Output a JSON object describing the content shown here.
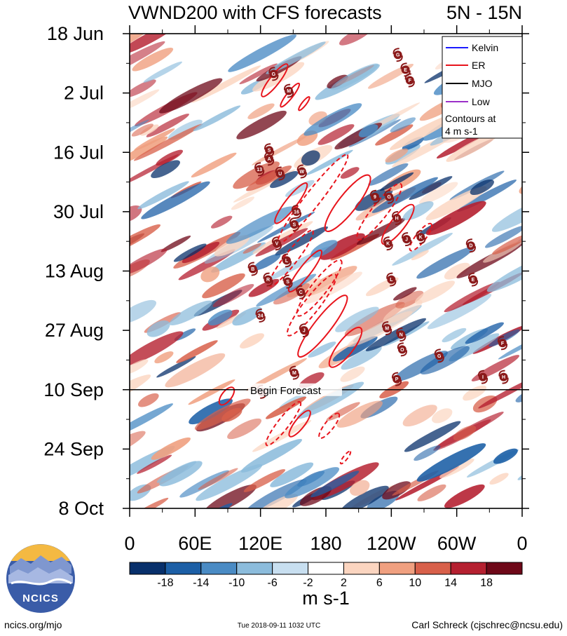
{
  "title": "VWND200 with CFS forecasts",
  "region": "5N - 15N",
  "colors": {
    "kelvin": "#1a1aff",
    "er": "#e8141c",
    "mjo": "#000000",
    "low": "#9b30c8",
    "storm": "#8b1a1a",
    "logo_bg": "#3a5ca8"
  },
  "legend": {
    "items": [
      {
        "label": "Kelvin",
        "color": "#1a1aff"
      },
      {
        "label": "ER",
        "color": "#e8141c"
      },
      {
        "label": "MJO",
        "color": "#000000"
      },
      {
        "label": "Low",
        "color": "#9b30c8"
      }
    ],
    "note_line1": "Contours at",
    "note_line2": "4 m s-1"
  },
  "forecast_label": "Begin Forecast",
  "colorbar": {
    "labels": [
      "-18",
      "-14",
      "-10",
      "-6",
      "-2",
      "2",
      "6",
      "10",
      "14",
      "18"
    ],
    "colors": [
      "#08306b",
      "#1c5fa6",
      "#4a8bc4",
      "#8cbcdc",
      "#c8dff0",
      "#ffffff",
      "#fbd5c0",
      "#f0a080",
      "#d8604a",
      "#b52030",
      "#6e0818"
    ],
    "units": "m s-1"
  },
  "logo_text": "NCICS",
  "footer": {
    "left": "ncics.org/mjo",
    "center": "Tue 2018-09-11 1032 UTC",
    "right": "Carl Schreck (cjschrec@ncsu.edu)"
  },
  "chart_data": {
    "type": "heatmap",
    "description_axes": "Hovmoller: longitude (x) vs time (y)",
    "x_ticks": [
      {
        "lon": 0,
        "label": "0"
      },
      {
        "lon": 60,
        "label": "60E"
      },
      {
        "lon": 120,
        "label": "120E"
      },
      {
        "lon": 180,
        "label": "180"
      },
      {
        "lon": 240,
        "label": "120W"
      },
      {
        "lon": 300,
        "label": "60W"
      },
      {
        "lon": 360,
        "label": "0"
      }
    ],
    "y_ticks": [
      {
        "day": 0,
        "label": "18 Jun"
      },
      {
        "day": 14,
        "label": "2 Jul"
      },
      {
        "day": 28,
        "label": "16 Jul"
      },
      {
        "day": 42,
        "label": "30 Jul"
      },
      {
        "day": 56,
        "label": "13 Aug"
      },
      {
        "day": 70,
        "label": "27 Aug"
      },
      {
        "day": 84,
        "label": "10 Sep"
      },
      {
        "day": 98,
        "label": "24 Sep"
      },
      {
        "day": 112,
        "label": "8 Oct"
      }
    ],
    "xlim": [
      0,
      360
    ],
    "ylim_days": [
      0,
      112
    ],
    "forecast_start_day": 84,
    "er_contours": [
      {
        "lon": 133,
        "day": 11.0,
        "len": 58,
        "w": 14,
        "dashed": false
      },
      {
        "lon": 147,
        "day": 14.5,
        "len": 42,
        "w": 9,
        "dashed": false
      },
      {
        "lon": 160,
        "day": 16.5,
        "len": 24,
        "w": 6,
        "dashed": false
      },
      {
        "lon": 148,
        "day": 40.0,
        "len": 72,
        "w": 16,
        "dashed": false
      },
      {
        "lon": 168,
        "day": 39.0,
        "len": 160,
        "w": 22,
        "dashed": true
      },
      {
        "lon": 200,
        "day": 40.0,
        "len": 100,
        "w": 26,
        "dashed": false
      },
      {
        "lon": 229,
        "day": 42.0,
        "len": 100,
        "w": 22,
        "dashed": true
      },
      {
        "lon": 246,
        "day": 45.0,
        "len": 70,
        "w": 20,
        "dashed": false
      },
      {
        "lon": 267,
        "day": 48.0,
        "len": 48,
        "w": 14,
        "dashed": true
      },
      {
        "lon": 148,
        "day": 53.0,
        "len": 100,
        "w": 18,
        "dashed": true
      },
      {
        "lon": 161,
        "day": 56.0,
        "len": 74,
        "w": 16,
        "dashed": false
      },
      {
        "lon": 174,
        "day": 60.0,
        "len": 100,
        "w": 22,
        "dashed": true
      },
      {
        "lon": 167,
        "day": 64.0,
        "len": 110,
        "w": 22,
        "dashed": true
      },
      {
        "lon": 177,
        "day": 69.0,
        "len": 110,
        "w": 24,
        "dashed": false
      },
      {
        "lon": 198,
        "day": 74.0,
        "len": 70,
        "w": 22,
        "dashed": false
      },
      {
        "lon": 89,
        "day": 85.5,
        "len": 30,
        "w": 14,
        "dashed": false
      },
      {
        "lon": 141,
        "day": 92.0,
        "len": 78,
        "w": 16,
        "dashed": true
      },
      {
        "lon": 156,
        "day": 92.0,
        "len": 46,
        "w": 14,
        "dashed": false
      },
      {
        "lon": 183,
        "day": 92.5,
        "len": 44,
        "w": 13,
        "dashed": true
      },
      {
        "lon": 198,
        "day": 100.0,
        "len": 22,
        "w": 6,
        "dashed": true
      }
    ],
    "storms": [
      {
        "label": "G",
        "lon": 132,
        "day": 9.5
      },
      {
        "label": "M",
        "lon": 146,
        "day": 13.5
      },
      {
        "label": "S",
        "lon": 128,
        "day": 27.5
      },
      {
        "label": "A",
        "lon": 128,
        "day": 29.5
      },
      {
        "label": "13",
        "lon": 119,
        "day": 32.0
      },
      {
        "label": "U",
        "lon": 138,
        "day": 33.0
      },
      {
        "label": "W",
        "lon": 158,
        "day": 32.5
      },
      {
        "label": "9",
        "lon": 225,
        "day": 38.5
      },
      {
        "label": "G",
        "lon": 238,
        "day": 38.5
      },
      {
        "label": "16",
        "lon": 153,
        "day": 42.0
      },
      {
        "label": "S",
        "lon": 151,
        "day": 45.0
      },
      {
        "label": "H",
        "lon": 245,
        "day": 43.5
      },
      {
        "label": "J",
        "lon": 254,
        "day": 48.5
      },
      {
        "label": "K",
        "lon": 267,
        "day": 48.0
      },
      {
        "label": "K",
        "lon": 237,
        "day": 49.5
      },
      {
        "label": "V",
        "lon": 135,
        "day": 49.5
      },
      {
        "label": "D",
        "lon": 313,
        "day": 50.0
      },
      {
        "label": "L",
        "lon": 144,
        "day": 53.5
      },
      {
        "label": "B",
        "lon": 113,
        "day": 55.5
      },
      {
        "label": "R",
        "lon": 127,
        "day": 58.0
      },
      {
        "label": "S",
        "lon": 145,
        "day": 58.5
      },
      {
        "label": "L",
        "lon": 240,
        "day": 58.0
      },
      {
        "label": "E",
        "lon": 315,
        "day": 58.0
      },
      {
        "label": "C",
        "lon": 157,
        "day": 61.0
      },
      {
        "label": "24",
        "lon": 120,
        "day": 66.5
      },
      {
        "label": "M",
        "lon": 236,
        "day": 69.5
      },
      {
        "label": "J",
        "lon": 160,
        "day": 70.0
      },
      {
        "label": "N",
        "lon": 249,
        "day": 71.0
      },
      {
        "label": "F",
        "lon": 342,
        "day": 73.0
      },
      {
        "label": "O",
        "lon": 250,
        "day": 74.5
      },
      {
        "label": "G",
        "lon": 284,
        "day": 76.0
      },
      {
        "label": "M",
        "lon": 151,
        "day": 80.0
      },
      {
        "label": "P",
        "lon": 245,
        "day": 81.5
      },
      {
        "label": "I",
        "lon": 324,
        "day": 81.0
      },
      {
        "label": "H",
        "lon": 343,
        "day": 81.0
      },
      {
        "label": "27",
        "lon": 121,
        "day": 84.5
      },
      {
        "label": "G",
        "lon": 246,
        "day": 5.0
      },
      {
        "label": "E",
        "lon": 253,
        "day": 8.5
      },
      {
        "label": "F",
        "lon": 257,
        "day": 11.0
      }
    ]
  }
}
